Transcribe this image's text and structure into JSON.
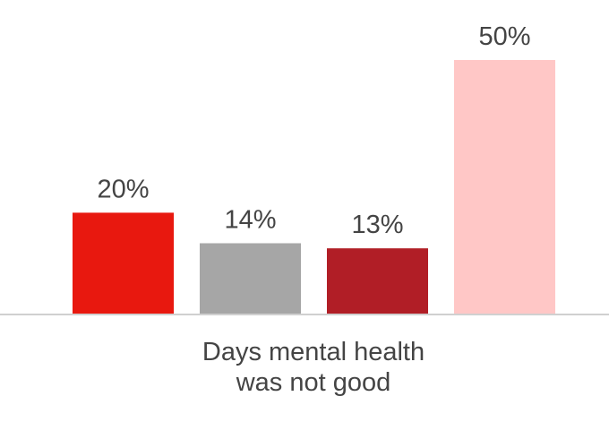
{
  "chart_data": {
    "type": "bar",
    "category": "Days mental health was not good",
    "category_lines": [
      "Days mental health",
      "was not good"
    ],
    "categories": [
      "",
      "",
      "",
      ""
    ],
    "values": [
      20,
      14,
      13,
      50
    ],
    "value_labels": [
      "20%",
      "14%",
      "13%",
      "50%"
    ],
    "colors": [
      "#e8180f",
      "#a6a6a6",
      "#b11e26",
      "#ffc7c6"
    ],
    "ylim": [
      0,
      50
    ],
    "grid": false,
    "legend": "none",
    "title": "",
    "xlabel": "",
    "ylabel": ""
  }
}
